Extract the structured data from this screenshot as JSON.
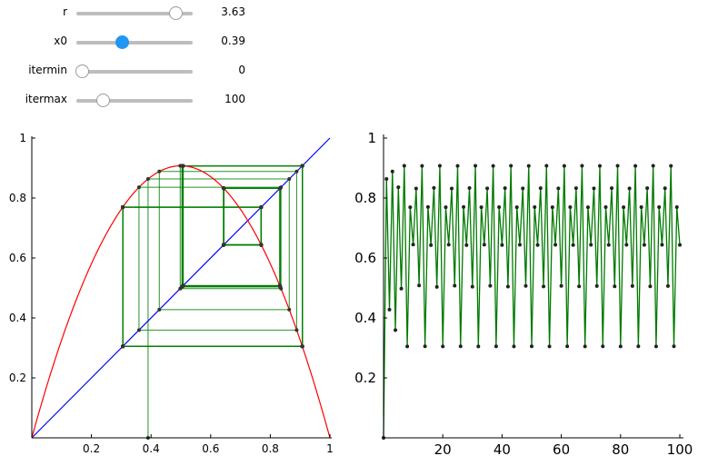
{
  "controls": [
    {
      "id": "r",
      "label": "r",
      "value": "3.63",
      "fraction": 0.91,
      "active": false
    },
    {
      "id": "x0",
      "label": "x0",
      "value": "0.39",
      "fraction": 0.39,
      "active": true
    },
    {
      "id": "itermin",
      "label": "itermin",
      "value": "0",
      "fraction": 0.0,
      "active": false
    },
    {
      "id": "itermax",
      "label": "itermax",
      "value": "100",
      "fraction": 0.2,
      "active": false
    }
  ],
  "colors": {
    "curve": "#ff0000",
    "diagonal": "#0000ff",
    "cobweb": "#008000",
    "series": "#007a00"
  },
  "chart_data": [
    {
      "type": "line",
      "title": "",
      "xlabel": "",
      "ylabel": "",
      "r": 3.63,
      "x0": 0.39,
      "iterations": 100,
      "xlim": [
        0,
        1
      ],
      "ylim": [
        0,
        1
      ],
      "xticks": [
        "0.2",
        "0.4",
        "0.6",
        "0.8",
        "1"
      ],
      "yticks": [
        "0.2",
        "0.4",
        "0.6",
        "0.8",
        "1"
      ],
      "series": [
        {
          "kind": "curve",
          "function": "r*x*(1-x)"
        },
        {
          "kind": "diagonal",
          "function": "x"
        },
        {
          "kind": "cobweb"
        }
      ]
    },
    {
      "type": "line",
      "title": "",
      "xlabel": "",
      "ylabel": "",
      "xlim": [
        0,
        100
      ],
      "ylim": [
        0,
        1
      ],
      "xticks": [
        "20",
        "40",
        "60",
        "80",
        "100"
      ],
      "yticks": [
        "0.2",
        "0.4",
        "0.6",
        "0.8",
        "1"
      ],
      "series": [
        {
          "kind": "orbit",
          "x0": 0,
          "r": 3.63,
          "iterations": 100
        }
      ]
    }
  ]
}
